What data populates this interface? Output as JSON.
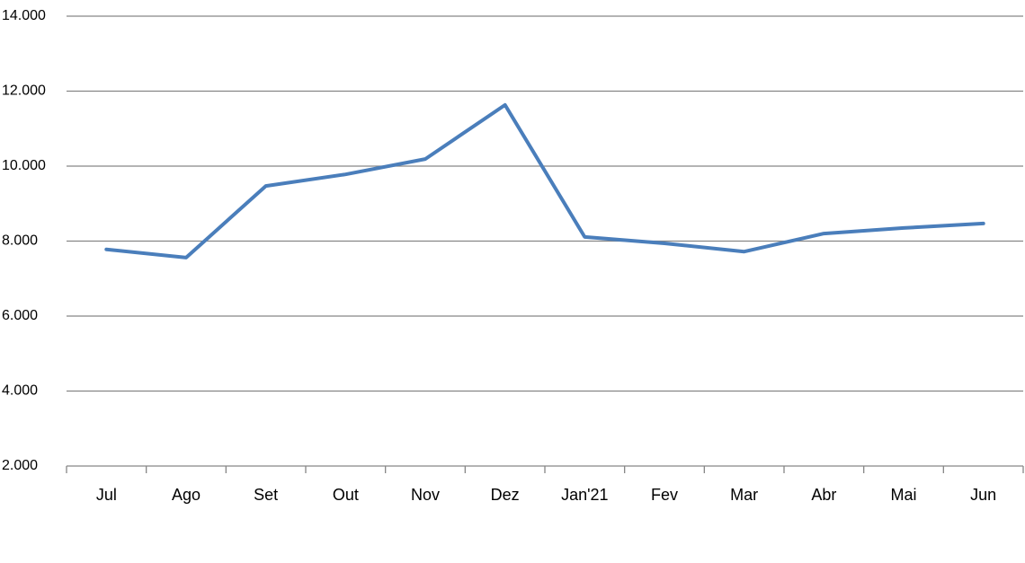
{
  "chart_data": {
    "type": "line",
    "categories": [
      "Jul",
      "Ago",
      "Set",
      "Out",
      "Nov",
      "Dez",
      "Jan'21",
      "Fev",
      "Mar",
      "Abr",
      "Mai",
      "Jun"
    ],
    "series": [
      {
        "name": null,
        "color": "#4a7ebb",
        "values": [
          7780,
          7560,
          9470,
          9780,
          10190,
          11630,
          8110,
          7940,
          7720,
          8200,
          8350,
          8470
        ]
      }
    ],
    "ylim": [
      2000,
      14000
    ],
    "yticks": [
      {
        "value": 2000,
        "label": "2.000"
      },
      {
        "value": 4000,
        "label": "4.000"
      },
      {
        "value": 6000,
        "label": "6.000"
      },
      {
        "value": 8000,
        "label": "8.000"
      },
      {
        "value": 10000,
        "label": "10.000"
      },
      {
        "value": 12000,
        "label": "12.000"
      },
      {
        "value": 14000,
        "label": "14.000"
      }
    ],
    "grid": true
  }
}
